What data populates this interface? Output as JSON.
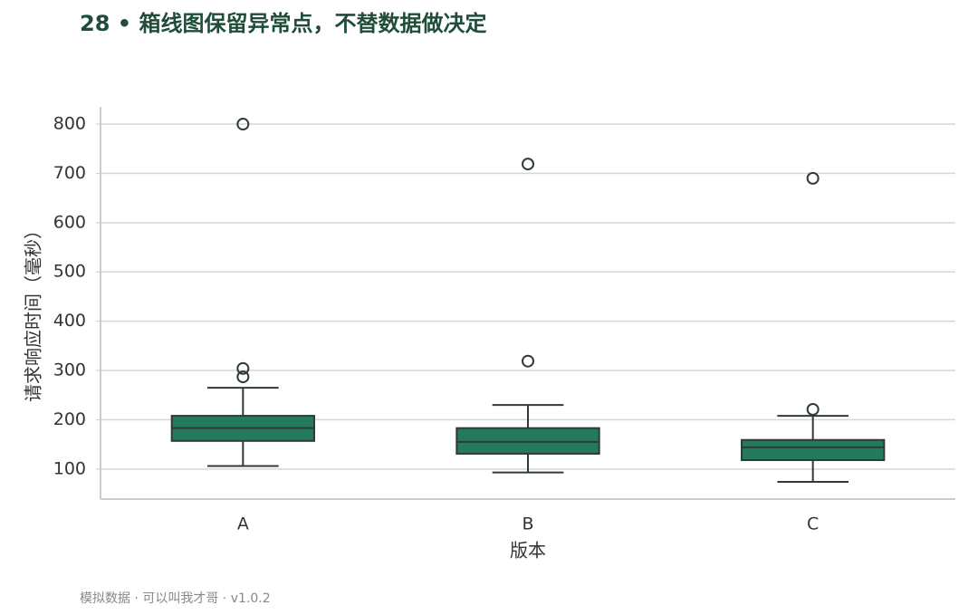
{
  "chart_data": {
    "type": "box",
    "title": "28 • 箱线图保留异常点，不替数据做决定",
    "xlabel": "版本",
    "ylabel": "请求响应时间（毫秒）",
    "footer": "模拟数据 · 可以叫我才哥 · v1.0.2",
    "categories": [
      "A",
      "B",
      "C"
    ],
    "color": "#237a5c",
    "edge_color": "#2f3b37",
    "boxes": [
      {
        "whislo": 106,
        "q1": 157,
        "med": 183,
        "q3": 208,
        "whishi": 265,
        "fliers": [
          800,
          304,
          287
        ]
      },
      {
        "whislo": 93,
        "q1": 131,
        "med": 155,
        "q3": 183,
        "whishi": 230,
        "fliers": [
          719,
          319
        ]
      },
      {
        "whislo": 74,
        "q1": 118,
        "med": 144,
        "q3": 159,
        "whishi": 208,
        "fliers": [
          690,
          221
        ]
      }
    ],
    "ylim": [
      39,
      835
    ],
    "yticks": [
      100,
      200,
      300,
      400,
      500,
      600,
      700,
      800
    ],
    "grid": true
  }
}
